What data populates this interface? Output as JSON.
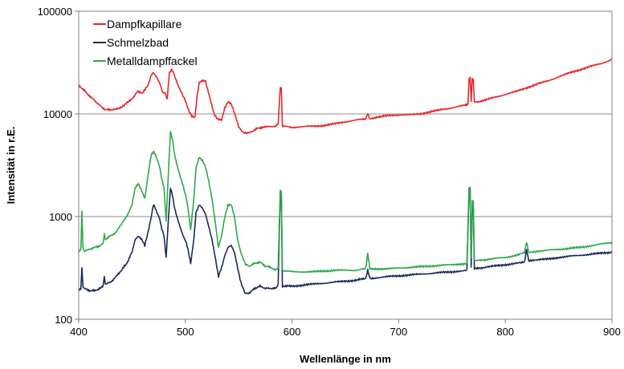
{
  "chart_data": {
    "type": "line",
    "xlabel": "Wellenlänge in nm",
    "ylabel": "Intensität in r.E.",
    "xlim": [
      400,
      900
    ],
    "ylim": [
      100,
      100000
    ],
    "yscale": "log",
    "x_ticks": [
      "400",
      "500",
      "600",
      "700",
      "800",
      "900"
    ],
    "y_ticks": [
      "100",
      "1000",
      "10000",
      "100000"
    ],
    "grid": "horizontal",
    "legend_position": "top-left",
    "series": [
      {
        "name": "Dampfkapillare",
        "color": "#e8262a",
        "points": [
          [
            400,
            19000
          ],
          [
            405,
            17000
          ],
          [
            410,
            15000
          ],
          [
            415,
            13500
          ],
          [
            420,
            12000
          ],
          [
            425,
            11000
          ],
          [
            430,
            11000
          ],
          [
            440,
            11500
          ],
          [
            450,
            14000
          ],
          [
            455,
            16500
          ],
          [
            460,
            16000
          ],
          [
            465,
            19000
          ],
          [
            468,
            24000
          ],
          [
            470,
            25000
          ],
          [
            473,
            23000
          ],
          [
            476,
            20000
          ],
          [
            479,
            16000
          ],
          [
            481,
            16000
          ],
          [
            483,
            14000
          ],
          [
            485,
            25000
          ],
          [
            487,
            27000
          ],
          [
            489,
            25000
          ],
          [
            491,
            22000
          ],
          [
            493,
            19000
          ],
          [
            496,
            16500
          ],
          [
            500,
            13500
          ],
          [
            503,
            11000
          ],
          [
            506,
            9500
          ],
          [
            509,
            9200
          ],
          [
            511,
            15000
          ],
          [
            513,
            20000
          ],
          [
            516,
            21000
          ],
          [
            519,
            21000
          ],
          [
            521,
            17000
          ],
          [
            524,
            13000
          ],
          [
            527,
            10000
          ],
          [
            530,
            9000
          ],
          [
            534,
            8800
          ],
          [
            537,
            11500
          ],
          [
            540,
            13000
          ],
          [
            543,
            12500
          ],
          [
            547,
            9500
          ],
          [
            550,
            7500
          ],
          [
            554,
            6600
          ],
          [
            558,
            6500
          ],
          [
            562,
            6700
          ],
          [
            567,
            7200
          ],
          [
            572,
            7400
          ],
          [
            578,
            7500
          ],
          [
            584,
            7600
          ],
          [
            587,
            8000
          ],
          [
            589,
            18000
          ],
          [
            590,
            17500
          ],
          [
            591,
            7600
          ],
          [
            600,
            7400
          ],
          [
            610,
            7500
          ],
          [
            620,
            7600
          ],
          [
            630,
            7700
          ],
          [
            640,
            8000
          ],
          [
            650,
            8400
          ],
          [
            660,
            8700
          ],
          [
            669,
            9000
          ],
          [
            671,
            10000
          ],
          [
            673,
            9000
          ],
          [
            680,
            9300
          ],
          [
            690,
            9600
          ],
          [
            700,
            9800
          ],
          [
            710,
            9800
          ],
          [
            720,
            10000
          ],
          [
            730,
            10500
          ],
          [
            740,
            11000
          ],
          [
            750,
            11500
          ],
          [
            760,
            12000
          ],
          [
            765,
            12500
          ],
          [
            766,
            22000
          ],
          [
            767,
            22500
          ],
          [
            768,
            13000
          ],
          [
            769,
            22000
          ],
          [
            770,
            21500
          ],
          [
            771,
            13000
          ],
          [
            780,
            13500
          ],
          [
            790,
            14500
          ],
          [
            800,
            15500
          ],
          [
            810,
            16500
          ],
          [
            820,
            18000
          ],
          [
            830,
            19500
          ],
          [
            840,
            21000
          ],
          [
            850,
            23000
          ],
          [
            860,
            25000
          ],
          [
            870,
            27000
          ],
          [
            880,
            29000
          ],
          [
            890,
            31000
          ],
          [
            900,
            34000
          ]
        ]
      },
      {
        "name": "Schmelzbad",
        "color": "#1b2a5a",
        "points": [
          [
            400,
            190
          ],
          [
            402,
            200
          ],
          [
            403,
            320
          ],
          [
            404,
            205
          ],
          [
            405,
            200
          ],
          [
            410,
            190
          ],
          [
            415,
            190
          ],
          [
            420,
            200
          ],
          [
            423,
            210
          ],
          [
            424,
            260
          ],
          [
            425,
            220
          ],
          [
            430,
            230
          ],
          [
            435,
            260
          ],
          [
            440,
            300
          ],
          [
            445,
            350
          ],
          [
            450,
            450
          ],
          [
            453,
            600
          ],
          [
            456,
            650
          ],
          [
            459,
            600
          ],
          [
            462,
            520
          ],
          [
            465,
            700
          ],
          [
            468,
            1000
          ],
          [
            470,
            1300
          ],
          [
            472,
            1200
          ],
          [
            474,
            1050
          ],
          [
            476,
            950
          ],
          [
            478,
            750
          ],
          [
            480,
            650
          ],
          [
            482,
            400
          ],
          [
            484,
            900
          ],
          [
            486,
            1900
          ],
          [
            488,
            1600
          ],
          [
            490,
            1200
          ],
          [
            492,
            1000
          ],
          [
            495,
            800
          ],
          [
            498,
            650
          ],
          [
            501,
            550
          ],
          [
            503,
            450
          ],
          [
            505,
            350
          ],
          [
            508,
            600
          ],
          [
            510,
            1100
          ],
          [
            513,
            1300
          ],
          [
            516,
            1200
          ],
          [
            519,
            1050
          ],
          [
            522,
            800
          ],
          [
            525,
            600
          ],
          [
            528,
            400
          ],
          [
            531,
            260
          ],
          [
            534,
            320
          ],
          [
            537,
            420
          ],
          [
            540,
            500
          ],
          [
            543,
            520
          ],
          [
            546,
            450
          ],
          [
            549,
            320
          ],
          [
            552,
            230
          ],
          [
            556,
            180
          ],
          [
            560,
            180
          ],
          [
            565,
            200
          ],
          [
            570,
            210
          ],
          [
            575,
            200
          ],
          [
            580,
            200
          ],
          [
            585,
            200
          ],
          [
            587,
            220
          ],
          [
            589,
            1700
          ],
          [
            590,
            1600
          ],
          [
            591,
            210
          ],
          [
            600,
            210
          ],
          [
            620,
            220
          ],
          [
            640,
            230
          ],
          [
            660,
            240
          ],
          [
            669,
            250
          ],
          [
            671,
            300
          ],
          [
            673,
            250
          ],
          [
            690,
            260
          ],
          [
            710,
            270
          ],
          [
            730,
            280
          ],
          [
            750,
            290
          ],
          [
            764,
            300
          ],
          [
            766,
            1800
          ],
          [
            767,
            1900
          ],
          [
            768,
            320
          ],
          [
            769,
            1300
          ],
          [
            770,
            1250
          ],
          [
            771,
            310
          ],
          [
            780,
            320
          ],
          [
            790,
            330
          ],
          [
            800,
            340
          ],
          [
            810,
            350
          ],
          [
            818,
            360
          ],
          [
            820,
            480
          ],
          [
            822,
            370
          ],
          [
            830,
            380
          ],
          [
            840,
            385
          ],
          [
            850,
            400
          ],
          [
            860,
            410
          ],
          [
            870,
            420
          ],
          [
            880,
            430
          ],
          [
            890,
            440
          ],
          [
            900,
            450
          ]
        ]
      },
      {
        "name": "Metalldampffackel",
        "color": "#2ea84b",
        "points": [
          [
            400,
            450
          ],
          [
            402,
            480
          ],
          [
            403,
            1100
          ],
          [
            404,
            500
          ],
          [
            405,
            460
          ],
          [
            410,
            480
          ],
          [
            415,
            500
          ],
          [
            420,
            520
          ],
          [
            423,
            550
          ],
          [
            424,
            700
          ],
          [
            425,
            600
          ],
          [
            430,
            650
          ],
          [
            435,
            700
          ],
          [
            440,
            850
          ],
          [
            445,
            1000
          ],
          [
            450,
            1300
          ],
          [
            453,
            1900
          ],
          [
            456,
            2100
          ],
          [
            459,
            1800
          ],
          [
            462,
            1500
          ],
          [
            465,
            2500
          ],
          [
            468,
            4000
          ],
          [
            470,
            4300
          ],
          [
            472,
            4000
          ],
          [
            474,
            3500
          ],
          [
            476,
            3000
          ],
          [
            478,
            2300
          ],
          [
            480,
            1900
          ],
          [
            482,
            900
          ],
          [
            484,
            2500
          ],
          [
            486,
            6800
          ],
          [
            488,
            5500
          ],
          [
            490,
            4000
          ],
          [
            492,
            3200
          ],
          [
            495,
            2500
          ],
          [
            498,
            2000
          ],
          [
            501,
            1500
          ],
          [
            503,
            1100
          ],
          [
            505,
            750
          ],
          [
            508,
            1500
          ],
          [
            510,
            3000
          ],
          [
            513,
            3800
          ],
          [
            516,
            3500
          ],
          [
            519,
            3000
          ],
          [
            522,
            2200
          ],
          [
            525,
            1500
          ],
          [
            528,
            900
          ],
          [
            531,
            500
          ],
          [
            534,
            650
          ],
          [
            537,
            1000
          ],
          [
            540,
            1300
          ],
          [
            543,
            1300
          ],
          [
            546,
            1000
          ],
          [
            549,
            600
          ],
          [
            552,
            450
          ],
          [
            556,
            350
          ],
          [
            560,
            330
          ],
          [
            565,
            350
          ],
          [
            570,
            360
          ],
          [
            575,
            330
          ],
          [
            580,
            320
          ],
          [
            585,
            300
          ],
          [
            587,
            320
          ],
          [
            589,
            1800
          ],
          [
            590,
            1750
          ],
          [
            591,
            300
          ],
          [
            600,
            290
          ],
          [
            620,
            290
          ],
          [
            640,
            300
          ],
          [
            660,
            300
          ],
          [
            669,
            310
          ],
          [
            671,
            440
          ],
          [
            673,
            310
          ],
          [
            690,
            310
          ],
          [
            710,
            320
          ],
          [
            730,
            330
          ],
          [
            750,
            340
          ],
          [
            764,
            350
          ],
          [
            766,
            1900
          ],
          [
            767,
            1850
          ],
          [
            768,
            400
          ],
          [
            769,
            1450
          ],
          [
            770,
            1400
          ],
          [
            771,
            370
          ],
          [
            780,
            380
          ],
          [
            790,
            390
          ],
          [
            800,
            400
          ],
          [
            810,
            420
          ],
          [
            818,
            450
          ],
          [
            820,
            560
          ],
          [
            822,
            450
          ],
          [
            830,
            460
          ],
          [
            840,
            470
          ],
          [
            850,
            480
          ],
          [
            860,
            490
          ],
          [
            870,
            500
          ],
          [
            880,
            520
          ],
          [
            890,
            540
          ],
          [
            900,
            560
          ]
        ]
      }
    ]
  }
}
